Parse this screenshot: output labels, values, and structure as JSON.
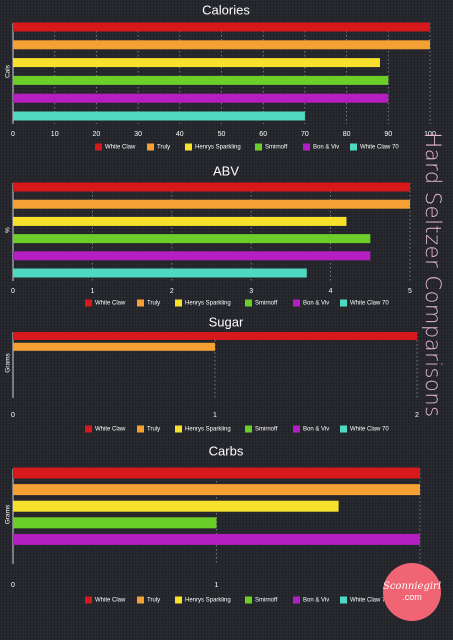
{
  "side_title": "Hard Seltzer Comparisons",
  "badge": {
    "line1": "Sconniegirl",
    "line2": ".com"
  },
  "legend": [
    {
      "name": "White Claw",
      "color": "#d7191c"
    },
    {
      "name": "Truly",
      "color": "#f4a032"
    },
    {
      "name": "Henrys Sparkling",
      "color": "#f7e12c"
    },
    {
      "name": "Smirnoff",
      "color": "#6ccf29"
    },
    {
      "name": "Bon & Viv",
      "color": "#b51fc2"
    },
    {
      "name": "White Claw 70",
      "color": "#4fd9c0"
    }
  ],
  "chart_data": [
    {
      "type": "bar",
      "orientation": "horizontal",
      "title": "Calories",
      "ylabel": "Cals",
      "xlabel": "",
      "xlim": [
        0,
        100
      ],
      "ticks": [
        "0",
        "10",
        "20",
        "30",
        "40",
        "50",
        "60",
        "70",
        "80",
        "90",
        "100"
      ],
      "categories": [
        "White Claw",
        "Truly",
        "Henrys Sparkling",
        "Smirnoff",
        "Bon & Viv",
        "White Claw 70"
      ],
      "values": [
        100,
        100,
        88,
        90,
        90,
        70
      ],
      "legend_position": "bottom"
    },
    {
      "type": "bar",
      "orientation": "horizontal",
      "title": "ABV",
      "ylabel": "%",
      "xlabel": "",
      "xlim": [
        0,
        5
      ],
      "ticks": [
        "0",
        "1",
        "2",
        "3",
        "4",
        "5"
      ],
      "categories": [
        "White Claw",
        "Truly",
        "Henrys Sparkling",
        "Smirnoff",
        "Bon & Viv",
        "White Claw 70"
      ],
      "values": [
        5,
        5,
        4.2,
        4.5,
        4.5,
        3.7
      ],
      "legend_position": "bottom"
    },
    {
      "type": "bar",
      "orientation": "horizontal",
      "title": "Sugar",
      "ylabel": "Grams",
      "xlabel": "",
      "xlim": [
        0,
        2
      ],
      "ticks": [
        "0",
        "1",
        "2"
      ],
      "categories": [
        "White Claw",
        "Truly",
        "Henrys Sparkling",
        "Smirnoff",
        "Bon & Viv",
        "White Claw 70"
      ],
      "values": [
        2,
        1,
        0,
        0,
        0,
        0
      ],
      "legend_position": "bottom"
    },
    {
      "type": "bar",
      "orientation": "horizontal",
      "title": "Carbs",
      "ylabel": "Grams",
      "xlabel": "",
      "xlim": [
        0,
        2
      ],
      "ticks": [
        "0",
        "1",
        "2"
      ],
      "categories": [
        "White Claw",
        "Truly",
        "Henrys Sparkling",
        "Smirnoff",
        "Bon & Viv",
        "White Claw 70"
      ],
      "values": [
        2,
        2,
        1.6,
        1,
        2,
        0
      ],
      "legend_position": "bottom"
    }
  ]
}
